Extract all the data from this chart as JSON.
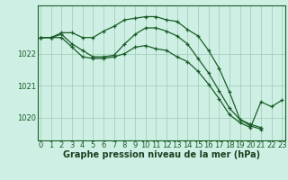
{
  "title": "Graphe pression niveau de la mer (hPa)",
  "xlabel_hours": [
    0,
    1,
    2,
    3,
    4,
    5,
    6,
    7,
    8,
    9,
    10,
    11,
    12,
    13,
    14,
    15,
    16,
    17,
    18,
    19,
    20,
    21,
    22,
    23
  ],
  "line1_x": [
    0,
    1,
    2,
    3,
    4,
    5,
    6,
    7,
    8,
    9,
    10,
    11,
    12,
    13,
    14,
    15,
    16,
    17,
    18,
    19,
    20,
    21
  ],
  "line1_y": [
    1022.5,
    1022.5,
    1022.65,
    1022.65,
    1022.5,
    1022.5,
    1022.7,
    1022.85,
    1023.05,
    1023.1,
    1023.15,
    1023.15,
    1023.05,
    1023.0,
    1022.75,
    1022.55,
    1022.1,
    1021.55,
    1020.8,
    1019.95,
    1019.75,
    1019.65
  ],
  "line2_x": [
    0,
    1,
    2,
    3,
    4,
    5,
    6,
    7,
    8,
    9,
    10,
    11,
    12,
    13,
    14,
    15,
    16,
    17,
    18,
    19,
    20,
    21,
    22,
    23
  ],
  "line2_y": [
    1022.5,
    1022.5,
    1022.5,
    1022.2,
    1021.9,
    1021.85,
    1021.85,
    1021.9,
    1022.0,
    1022.2,
    1022.25,
    1022.15,
    1022.1,
    1021.9,
    1021.75,
    1021.45,
    1021.05,
    1020.6,
    1020.1,
    1019.85,
    1019.7,
    1020.5,
    1020.35,
    1020.55
  ],
  "line3_x": [
    0,
    1,
    2,
    3,
    4,
    5,
    6,
    7,
    8,
    9,
    10,
    11,
    12,
    13,
    14,
    15,
    16,
    17,
    18,
    19,
    20,
    21
  ],
  "line3_y": [
    1022.5,
    1022.5,
    1022.6,
    1022.3,
    1022.1,
    1021.9,
    1021.9,
    1021.95,
    1022.3,
    1022.6,
    1022.8,
    1022.8,
    1022.7,
    1022.55,
    1022.3,
    1021.85,
    1021.4,
    1020.85,
    1020.3,
    1019.95,
    1019.8,
    1019.7
  ],
  "yticks": [
    1020,
    1021,
    1022
  ],
  "ylim": [
    1019.3,
    1023.5
  ],
  "xlim": [
    -0.3,
    23.3
  ],
  "bg_color": "#cef0e4",
  "grid_color": "#9ec8b4",
  "line_color": "#1a5c28",
  "tick_label_color": "#1a5c28",
  "title_color": "#1a4020",
  "title_fontsize": 7.0,
  "tick_fontsize": 6.0
}
